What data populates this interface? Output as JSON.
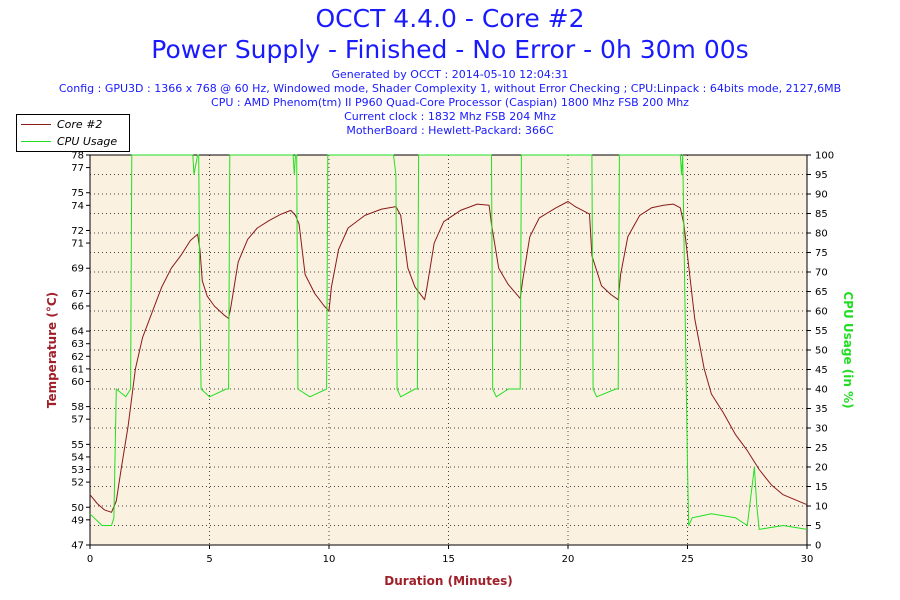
{
  "header": {
    "title_line1": "OCCT 4.4.0 - Core #2",
    "title_line2": "Power Supply - Finished - No Error - 0h 30m 00s",
    "info": [
      "Generated by OCCT : 2014-05-10 12:04:31",
      "Config : GPU3D : 1366 x 768 @ 60 Hz, Windowed mode, Shader Complexity 1, without Error Checking ; CPU:Linpack : 64bits mode, 2127,6MB",
      "CPU : AMD Phenom(tm) II P960 Quad-Core Processor (Caspian) 1800 Mhz FSB 200 Mhz",
      "Current clock : 1832 Mhz FSB 204 Mhz",
      "MotherBoard : Hewlett-Packard: 366C"
    ]
  },
  "colors": {
    "temperature": "#8b1a1a",
    "cpu_usage": "#22e022",
    "plot_bg": "#fbf1e0",
    "title": "#1a1aff"
  },
  "chart_data": {
    "type": "line",
    "xlabel": "Duration (Minutes)",
    "ylabel_left": "Temperature (°C)",
    "ylabel_right": "CPU Usage (in %)",
    "xlim": [
      0,
      30
    ],
    "ylim_left": [
      47,
      78
    ],
    "ylim_right": [
      0,
      100
    ],
    "x_ticks": [
      0,
      5,
      10,
      15,
      20,
      25,
      30
    ],
    "y_left_ticks": [
      47,
      49,
      50,
      52,
      53,
      54,
      55,
      57,
      58,
      60,
      61,
      62,
      63,
      64,
      66,
      67,
      69,
      71,
      72,
      74,
      75,
      77,
      78
    ],
    "y_right_ticks": [
      0,
      5,
      10,
      15,
      20,
      25,
      30,
      35,
      40,
      45,
      50,
      55,
      60,
      65,
      70,
      75,
      80,
      85,
      90,
      95,
      100
    ],
    "grid": true,
    "legend_position": "top-left",
    "series": [
      {
        "name": "Core #2",
        "axis": "left",
        "x": [
          0,
          0.3,
          0.6,
          0.9,
          1.1,
          1.3,
          1.6,
          1.9,
          2.2,
          2.6,
          3.0,
          3.4,
          3.8,
          4.2,
          4.5,
          4.6,
          4.7,
          4.9,
          5.2,
          5.6,
          5.8,
          5.9,
          6.2,
          6.6,
          7.0,
          7.5,
          8.0,
          8.4,
          8.6,
          8.75,
          9.0,
          9.4,
          9.8,
          10.0,
          10.1,
          10.4,
          10.8,
          11.5,
          12.2,
          12.8,
          13.0,
          13.3,
          13.6,
          14.0,
          14.1,
          14.4,
          14.8,
          15.5,
          16.2,
          16.7,
          16.8,
          17.1,
          17.5,
          18.0,
          18.1,
          18.4,
          18.8,
          19.5,
          20.0,
          20.3,
          20.9,
          21.0,
          21.4,
          21.8,
          22.1,
          22.2,
          22.5,
          23.0,
          23.5,
          24.0,
          24.4,
          24.7,
          24.85,
          25.0,
          25.3,
          25.7,
          26.0,
          26.5,
          27.0,
          27.5,
          28.0,
          28.5,
          29.0,
          29.5,
          30.0
        ],
        "values": [
          51.0,
          50.3,
          49.8,
          49.6,
          50.5,
          53.0,
          56.5,
          61.0,
          63.5,
          65.5,
          67.5,
          69.0,
          70.0,
          71.2,
          71.7,
          70.5,
          68.0,
          66.8,
          66.0,
          65.3,
          65.0,
          66.0,
          69.5,
          71.3,
          72.2,
          72.8,
          73.3,
          73.6,
          73.2,
          72.5,
          68.5,
          67.0,
          66.0,
          65.6,
          67.5,
          70.5,
          72.2,
          73.2,
          73.7,
          73.9,
          73.2,
          69.0,
          67.5,
          66.5,
          67.5,
          71.0,
          72.7,
          73.6,
          74.1,
          74.0,
          72.5,
          69.0,
          67.7,
          66.6,
          68.0,
          71.5,
          73.0,
          73.8,
          74.3,
          73.9,
          73.3,
          70.0,
          67.6,
          66.9,
          66.5,
          68.5,
          71.5,
          73.2,
          73.8,
          74.0,
          74.1,
          73.8,
          72.5,
          70.0,
          65.0,
          61.0,
          59.0,
          57.5,
          55.8,
          54.5,
          53.0,
          51.8,
          51.0,
          50.6,
          50.2
        ]
      },
      {
        "name": "CPU Usage",
        "axis": "right",
        "x": [
          0,
          0.5,
          0.9,
          1.0,
          1.1,
          1.5,
          1.7,
          1.75,
          2.0,
          4.3,
          4.35,
          4.5,
          4.55,
          4.6,
          4.65,
          5.0,
          5.7,
          5.8,
          5.85,
          6.0,
          8.5,
          8.55,
          8.6,
          8.65,
          8.7,
          9.2,
          9.9,
          9.95,
          10.0,
          12.7,
          12.8,
          12.85,
          13.0,
          13.6,
          13.7,
          13.75,
          14.0,
          16.8,
          16.85,
          17.0,
          17.5,
          18.0,
          18.05,
          18.1,
          18.2,
          21.0,
          21.05,
          21.2,
          22.0,
          22.1,
          22.15,
          22.3,
          24.7,
          24.75,
          24.8,
          24.85,
          24.9,
          25.0,
          25.05,
          25.2,
          26.0,
          27.0,
          27.5,
          27.8,
          27.9,
          28.0,
          29.0,
          30.0
        ],
        "values": [
          8,
          5,
          5,
          7,
          40,
          38,
          40,
          100,
          100,
          100,
          95,
          100,
          100,
          60,
          40,
          38,
          40,
          40,
          100,
          100,
          100,
          95,
          100,
          100,
          40,
          38,
          40,
          100,
          100,
          100,
          95,
          40,
          38,
          40,
          40,
          100,
          100,
          100,
          40,
          38,
          40,
          40,
          100,
          100,
          100,
          100,
          40,
          38,
          40,
          40,
          100,
          100,
          100,
          95,
          100,
          80,
          60,
          20,
          5,
          7,
          8,
          7,
          5,
          20,
          10,
          4,
          5,
          4
        ]
      }
    ]
  }
}
